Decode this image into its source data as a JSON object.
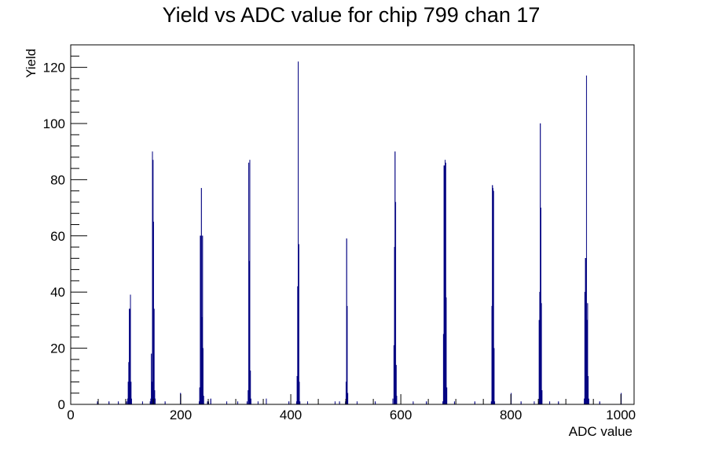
{
  "chart_data": {
    "type": "bar",
    "title": "Yield vs ADC value for chip 799 chan 17",
    "xlabel": "ADC value",
    "ylabel": "Yield",
    "xlim": [
      0,
      1024
    ],
    "ylim": [
      0,
      128
    ],
    "xticks": [
      0,
      200,
      400,
      600,
      800,
      1000
    ],
    "yticks": [
      0,
      20,
      40,
      60,
      80,
      100,
      120
    ],
    "x_tick_labels": [
      "0",
      "200",
      "400",
      "600",
      "800",
      "1000"
    ],
    "y_tick_labels": [
      "0",
      "20",
      "40",
      "60",
      "80",
      "100",
      "120"
    ],
    "grid": false,
    "legend": "none",
    "colors": {
      "bars": "#000080",
      "axes": "#000000",
      "background": "#ffffff"
    },
    "series": [
      {
        "bins": [
          {
            "x": 48,
            "y": 1
          },
          {
            "x": 69,
            "y": 1
          },
          {
            "x": 86,
            "y": 1
          },
          {
            "x": 101,
            "y": 1
          },
          {
            "x": 103,
            "y": 2
          },
          {
            "x": 104,
            "y": 8
          },
          {
            "x": 105,
            "y": 15
          },
          {
            "x": 106,
            "y": 34
          },
          {
            "x": 107,
            "y": 34
          },
          {
            "x": 108,
            "y": 39
          },
          {
            "x": 109,
            "y": 8
          },
          {
            "x": 110,
            "y": 2
          },
          {
            "x": 130,
            "y": 1
          },
          {
            "x": 144,
            "y": 1
          },
          {
            "x": 145,
            "y": 2
          },
          {
            "x": 146,
            "y": 18
          },
          {
            "x": 147,
            "y": 8
          },
          {
            "x": 148,
            "y": 90
          },
          {
            "x": 149,
            "y": 87
          },
          {
            "x": 150,
            "y": 65
          },
          {
            "x": 151,
            "y": 34
          },
          {
            "x": 152,
            "y": 5
          },
          {
            "x": 153,
            "y": 2
          },
          {
            "x": 171,
            "y": 1
          },
          {
            "x": 199,
            "y": 4
          },
          {
            "x": 233,
            "y": 1
          },
          {
            "x": 234,
            "y": 6
          },
          {
            "x": 235,
            "y": 60
          },
          {
            "x": 236,
            "y": 60
          },
          {
            "x": 237,
            "y": 77
          },
          {
            "x": 238,
            "y": 31
          },
          {
            "x": 239,
            "y": 60
          },
          {
            "x": 240,
            "y": 20
          },
          {
            "x": 241,
            "y": 3
          },
          {
            "x": 248,
            "y": 1
          },
          {
            "x": 250,
            "y": 1
          },
          {
            "x": 254,
            "y": 2
          },
          {
            "x": 283,
            "y": 1
          },
          {
            "x": 303,
            "y": 1
          },
          {
            "x": 320,
            "y": 1
          },
          {
            "x": 322,
            "y": 5
          },
          {
            "x": 323,
            "y": 86
          },
          {
            "x": 324,
            "y": 51
          },
          {
            "x": 325,
            "y": 87
          },
          {
            "x": 326,
            "y": 12
          },
          {
            "x": 327,
            "y": 2
          },
          {
            "x": 340,
            "y": 1
          },
          {
            "x": 355,
            "y": 2
          },
          {
            "x": 396,
            "y": 1
          },
          {
            "x": 410,
            "y": 1
          },
          {
            "x": 411,
            "y": 10
          },
          {
            "x": 412,
            "y": 42
          },
          {
            "x": 413,
            "y": 122
          },
          {
            "x": 414,
            "y": 57
          },
          {
            "x": 415,
            "y": 8
          },
          {
            "x": 416,
            "y": 1
          },
          {
            "x": 430,
            "y": 1
          },
          {
            "x": 480,
            "y": 1
          },
          {
            "x": 488,
            "y": 1
          },
          {
            "x": 499,
            "y": 1
          },
          {
            "x": 500,
            "y": 8
          },
          {
            "x": 501,
            "y": 59
          },
          {
            "x": 502,
            "y": 35
          },
          {
            "x": 503,
            "y": 4
          },
          {
            "x": 520,
            "y": 1
          },
          {
            "x": 553,
            "y": 1
          },
          {
            "x": 585,
            "y": 2
          },
          {
            "x": 587,
            "y": 21
          },
          {
            "x": 588,
            "y": 56
          },
          {
            "x": 589,
            "y": 90
          },
          {
            "x": 590,
            "y": 72
          },
          {
            "x": 591,
            "y": 14
          },
          {
            "x": 592,
            "y": 3
          },
          {
            "x": 622,
            "y": 1
          },
          {
            "x": 646,
            "y": 1
          },
          {
            "x": 676,
            "y": 1
          },
          {
            "x": 677,
            "y": 25
          },
          {
            "x": 678,
            "y": 85
          },
          {
            "x": 679,
            "y": 85
          },
          {
            "x": 680,
            "y": 87
          },
          {
            "x": 681,
            "y": 86
          },
          {
            "x": 682,
            "y": 38
          },
          {
            "x": 683,
            "y": 6
          },
          {
            "x": 697,
            "y": 1
          },
          {
            "x": 734,
            "y": 1
          },
          {
            "x": 764,
            "y": 1
          },
          {
            "x": 765,
            "y": 35
          },
          {
            "x": 766,
            "y": 78
          },
          {
            "x": 767,
            "y": 77
          },
          {
            "x": 768,
            "y": 76
          },
          {
            "x": 769,
            "y": 20
          },
          {
            "x": 770,
            "y": 1
          },
          {
            "x": 800,
            "y": 4
          },
          {
            "x": 818,
            "y": 1
          },
          {
            "x": 842,
            "y": 1
          },
          {
            "x": 850,
            "y": 1
          },
          {
            "x": 851,
            "y": 30
          },
          {
            "x": 852,
            "y": 40
          },
          {
            "x": 853,
            "y": 100
          },
          {
            "x": 854,
            "y": 70
          },
          {
            "x": 855,
            "y": 36
          },
          {
            "x": 856,
            "y": 5
          },
          {
            "x": 870,
            "y": 1
          },
          {
            "x": 886,
            "y": 1
          },
          {
            "x": 933,
            "y": 2
          },
          {
            "x": 934,
            "y": 40
          },
          {
            "x": 935,
            "y": 52
          },
          {
            "x": 936,
            "y": 52
          },
          {
            "x": 937,
            "y": 117
          },
          {
            "x": 938,
            "y": 30
          },
          {
            "x": 939,
            "y": 36
          },
          {
            "x": 940,
            "y": 10
          },
          {
            "x": 941,
            "y": 2
          },
          {
            "x": 961,
            "y": 1
          },
          {
            "x": 1000,
            "y": 4
          }
        ]
      }
    ]
  }
}
